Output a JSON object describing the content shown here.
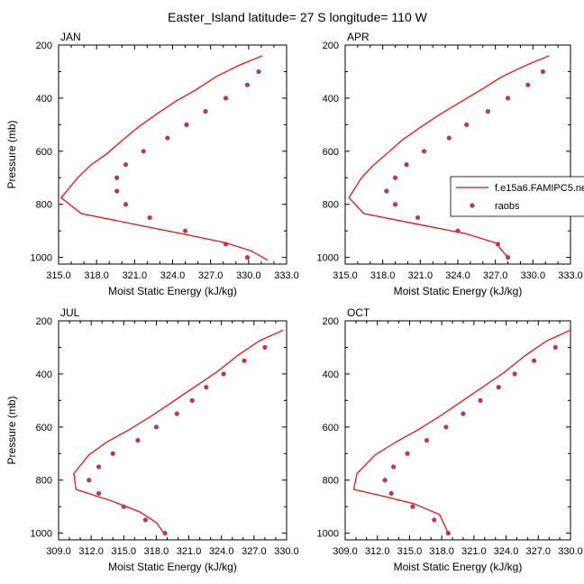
{
  "title": "Easter_Island  latitude= 27 S longitude= 110 W",
  "chart_data": [
    {
      "type": "line",
      "panel_label": "JAN",
      "xlabel": "Moist Static Energy (kJ/kg)",
      "ylabel": "Pressure (mb)",
      "xlim": [
        315.0,
        333.0
      ],
      "xticks": [
        315.0,
        318.0,
        321.0,
        324.0,
        327.0,
        330.0,
        333.0
      ],
      "ylim": [
        1025,
        200
      ],
      "yticks": [
        200,
        400,
        600,
        800,
        1000
      ],
      "series": [
        {
          "name": "f.e15a6.FAMIPC5.ne",
          "kind": "line",
          "color": "#ee1111",
          "x": [
            331.1,
            329.3,
            327.4,
            325.8,
            324.3,
            322.9,
            321.4,
            320.0,
            318.8,
            317.6,
            316.5,
            315.2,
            316.8,
            321.5,
            325.2,
            328.2,
            330.2,
            331.5
          ],
          "y": [
            240,
            275,
            320,
            370,
            410,
            455,
            505,
            560,
            610,
            650,
            700,
            775,
            835,
            880,
            915,
            945,
            975,
            1010
          ]
        },
        {
          "name": "raobs",
          "kind": "markers",
          "color": "#b5385f",
          "x": [
            330.8,
            329.9,
            328.2,
            326.6,
            325.1,
            323.6,
            321.7,
            320.3,
            319.6,
            319.6,
            320.3,
            322.2,
            325.0,
            328.2,
            329.9
          ],
          "y": [
            300,
            350,
            400,
            450,
            500,
            550,
            600,
            650,
            700,
            750,
            800,
            850,
            900,
            950,
            1000
          ]
        }
      ]
    },
    {
      "type": "line",
      "panel_label": "APR",
      "xlabel": "Moist Static Energy (kJ/kg)",
      "ylabel": "",
      "xlim": [
        315.0,
        333.0
      ],
      "xticks": [
        315.0,
        318.0,
        321.0,
        324.0,
        327.0,
        330.0,
        333.0
      ],
      "ylim": [
        1025,
        200
      ],
      "yticks": [
        200,
        400,
        600,
        800,
        1000
      ],
      "legend": {
        "position": "right",
        "entries": [
          {
            "label": "f.e15a6.FAMIPC5.ne",
            "kind": "line"
          },
          {
            "label": "raobs",
            "kind": "marker"
          }
        ]
      },
      "series": [
        {
          "name": "f.e15a6.FAMIPC5.ne",
          "kind": "line",
          "color": "#ee1111",
          "x": [
            331.3,
            329.5,
            327.5,
            325.8,
            324.2,
            322.6,
            321.0,
            319.5,
            318.3,
            317.2,
            316.3,
            315.3,
            316.5,
            320.8,
            324.6,
            327.0,
            328.0
          ],
          "y": [
            240,
            275,
            320,
            370,
            415,
            460,
            510,
            560,
            610,
            655,
            700,
            775,
            835,
            875,
            910,
            945,
            1000
          ]
        },
        {
          "name": "raobs",
          "kind": "markers",
          "color": "#b5385f",
          "x": [
            330.8,
            329.6,
            328.0,
            326.4,
            324.7,
            323.3,
            321.3,
            319.9,
            319.0,
            318.3,
            319.0,
            320.8,
            324.0,
            327.2,
            328.0
          ],
          "y": [
            300,
            350,
            400,
            450,
            500,
            550,
            600,
            650,
            700,
            750,
            800,
            850,
            900,
            950,
            1000
          ]
        }
      ]
    },
    {
      "type": "line",
      "panel_label": "JUL",
      "xlabel": "Moist Static Energy (kJ/kg)",
      "ylabel": "Pressure (mb)",
      "xlim": [
        309.0,
        330.0
      ],
      "xticks": [
        309.0,
        312.0,
        315.0,
        318.0,
        321.0,
        324.0,
        327.0,
        330.0
      ],
      "ylim": [
        1025,
        200
      ],
      "yticks": [
        200,
        400,
        600,
        800,
        1000
      ],
      "series": [
        {
          "name": "f.e15a6.FAMIPC5.ne",
          "kind": "line",
          "color": "#ee1111",
          "x": [
            329.7,
            327.5,
            325.5,
            323.5,
            321.5,
            319.5,
            317.5,
            315.5,
            313.5,
            311.8,
            310.4,
            310.6,
            314.0,
            316.5,
            318.0,
            318.8
          ],
          "y": [
            235,
            275,
            330,
            395,
            450,
            505,
            560,
            610,
            655,
            705,
            775,
            835,
            880,
            920,
            960,
            1005
          ]
        },
        {
          "name": "raobs",
          "kind": "markers",
          "color": "#b5385f",
          "x": [
            328.0,
            326.1,
            324.2,
            322.6,
            321.3,
            319.9,
            318.0,
            316.3,
            314.0,
            312.7,
            311.8,
            312.7,
            315.0,
            317.0,
            318.8
          ],
          "y": [
            300,
            350,
            400,
            450,
            500,
            550,
            600,
            650,
            700,
            750,
            800,
            850,
            900,
            950,
            1000
          ]
        }
      ]
    },
    {
      "type": "line",
      "panel_label": "OCT",
      "xlabel": "Moist Static Energy (kJ/kg)",
      "ylabel": "",
      "xlim": [
        309.0,
        330.0
      ],
      "xticks": [
        309.0,
        312.0,
        315.0,
        318.0,
        321.0,
        324.0,
        327.0,
        330.0
      ],
      "ylim": [
        1025,
        200
      ],
      "yticks": [
        200,
        400,
        600,
        800,
        1000
      ],
      "series": [
        {
          "name": "f.e15a6.FAMIPC5.ne",
          "kind": "line",
          "color": "#ee1111",
          "x": [
            330.0,
            327.8,
            325.8,
            323.8,
            321.8,
            319.8,
            317.8,
            315.8,
            313.8,
            311.8,
            310.1,
            309.8,
            312.5,
            315.5,
            317.8,
            318.6
          ],
          "y": [
            235,
            275,
            330,
            395,
            450,
            505,
            560,
            610,
            655,
            705,
            775,
            835,
            860,
            890,
            930,
            1000
          ]
        },
        {
          "name": "raobs",
          "kind": "markers",
          "color": "#b5385f",
          "x": [
            328.6,
            326.6,
            324.8,
            323.3,
            321.6,
            320.0,
            318.4,
            316.6,
            314.8,
            313.5,
            312.7,
            313.3,
            315.3,
            317.3,
            318.6
          ],
          "y": [
            300,
            350,
            400,
            450,
            500,
            550,
            600,
            650,
            700,
            750,
            800,
            850,
            900,
            950,
            1000
          ]
        }
      ]
    }
  ]
}
